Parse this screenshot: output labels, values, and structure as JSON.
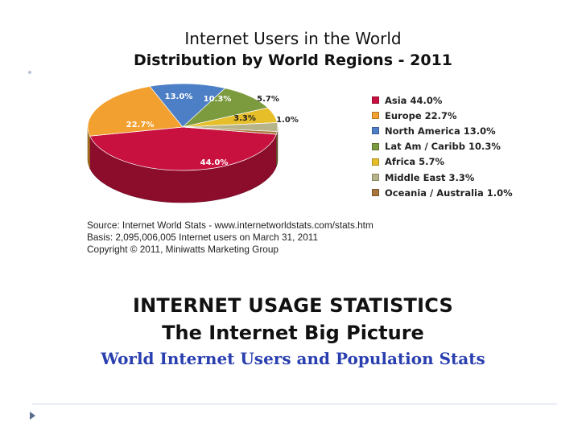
{
  "chart_data": {
    "type": "pie",
    "title": "Internet Users in the World",
    "subtitle": "Distribution by World Regions - 2011",
    "series": [
      {
        "name": "Asia",
        "value": 44.0,
        "label": "44.0%",
        "legend": "Asia  44.0%",
        "color": "#c8113f"
      },
      {
        "name": "Europe",
        "value": 22.7,
        "label": "22.7%",
        "legend": "Europe  22.7%",
        "color": "#f2a030"
      },
      {
        "name": "North America",
        "value": 13.0,
        "label": "13.0%",
        "legend": "North America  13.0%",
        "color": "#4d7fc6"
      },
      {
        "name": "Lat Am / Caribb",
        "value": 10.3,
        "label": "10.3%",
        "legend": "Lat Am / Caribb  10.3%",
        "color": "#7c9a3e"
      },
      {
        "name": "Africa",
        "value": 5.7,
        "label": "5.7%",
        "legend": "Africa  5.7%",
        "color": "#e5be2a"
      },
      {
        "name": "Middle East",
        "value": 3.3,
        "label": "3.3%",
        "legend": "Middle East  3.3%",
        "color": "#b8b48a"
      },
      {
        "name": "Oceania / Australia",
        "value": 1.0,
        "label": "1.0%",
        "legend": "Oceania / Australia  1.0%",
        "color": "#a8763a"
      }
    ],
    "legend_position": "right",
    "three_d": true
  },
  "source": {
    "line1": "Source: Internet World Stats -  www.internetworldstats.com/stats.htm",
    "line2": "Basis: 2,095,006,005 Internet users on March 31, 2011",
    "line3": "Copyright © 2011, Miniwatts Marketing Group"
  },
  "banner": {
    "heading": "INTERNET USAGE STATISTICS",
    "subheading": "The Internet Big Picture",
    "link": "World Internet Users and Population Stats"
  }
}
